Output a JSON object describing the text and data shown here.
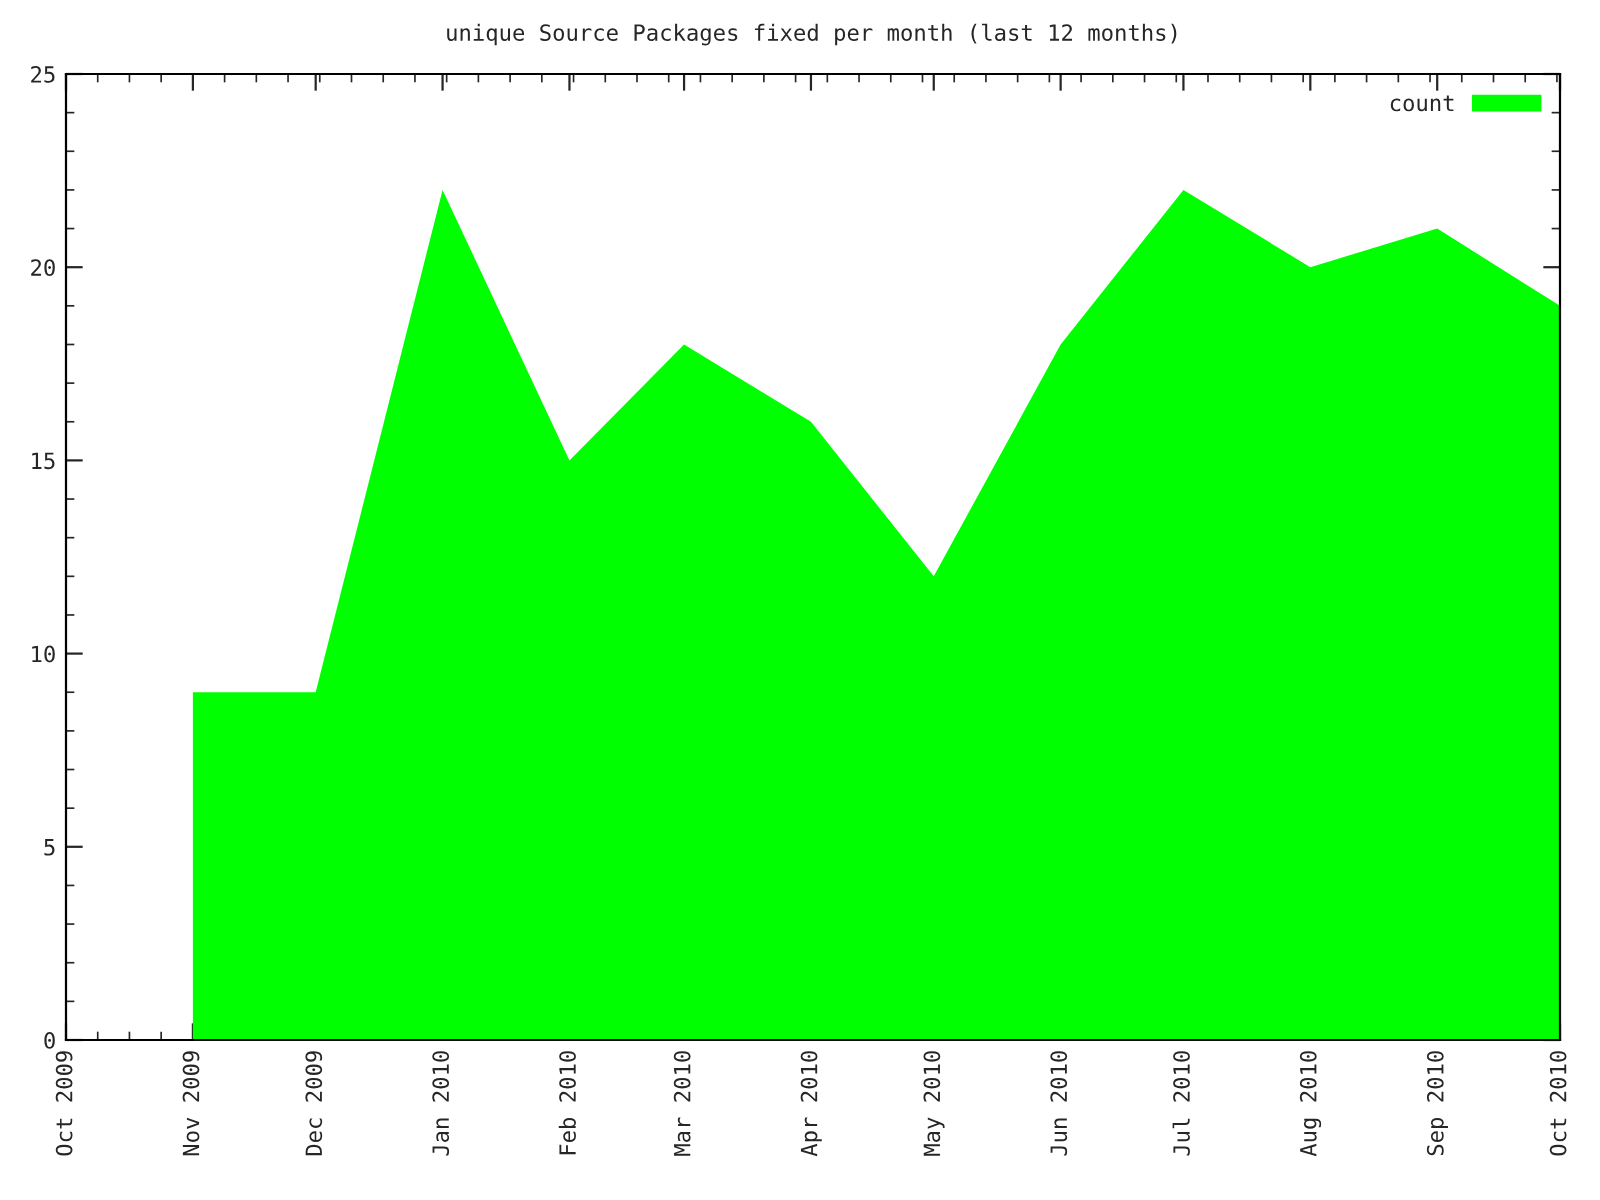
{
  "chart_data": {
    "type": "area",
    "title": "unique Source Packages fixed per month (last 12 months)",
    "x": [
      "2009-11-01",
      "2009-12-01",
      "2010-01-01",
      "2010-02-01",
      "2010-03-01",
      "2010-04-01",
      "2010-05-01",
      "2010-06-01",
      "2010-07-01",
      "2010-08-01",
      "2010-09-01",
      "2010-10-01"
    ],
    "series": [
      {
        "name": "count",
        "color": "#00ff00",
        "values": [
          9,
          9,
          22,
          15,
          18,
          16,
          12,
          18,
          22,
          20,
          21,
          19
        ]
      }
    ],
    "xlim": [
      "2009-10-01",
      "2010-10-01"
    ],
    "xticks": [
      {
        "value": "2009-10-01",
        "label": "Oct 2009"
      },
      {
        "value": "2009-11-01",
        "label": "Nov 2009"
      },
      {
        "value": "2009-12-01",
        "label": "Dec 2009"
      },
      {
        "value": "2010-01-01",
        "label": "Jan 2010"
      },
      {
        "value": "2010-02-01",
        "label": "Feb 2010"
      },
      {
        "value": "2010-03-01",
        "label": "Mar 2010"
      },
      {
        "value": "2010-04-01",
        "label": "Apr 2010"
      },
      {
        "value": "2010-05-01",
        "label": "May 2010"
      },
      {
        "value": "2010-06-01",
        "label": "Jun 2010"
      },
      {
        "value": "2010-07-01",
        "label": "Jul 2010"
      },
      {
        "value": "2010-08-01",
        "label": "Aug 2010"
      },
      {
        "value": "2010-09-01",
        "label": "Sep 2010"
      },
      {
        "value": "2010-10-01",
        "label": "Oct 2010"
      }
    ],
    "ylim": [
      0,
      25
    ],
    "yticks": [
      0,
      5,
      10,
      15,
      20,
      25
    ],
    "grid": false,
    "legend": "top right"
  }
}
